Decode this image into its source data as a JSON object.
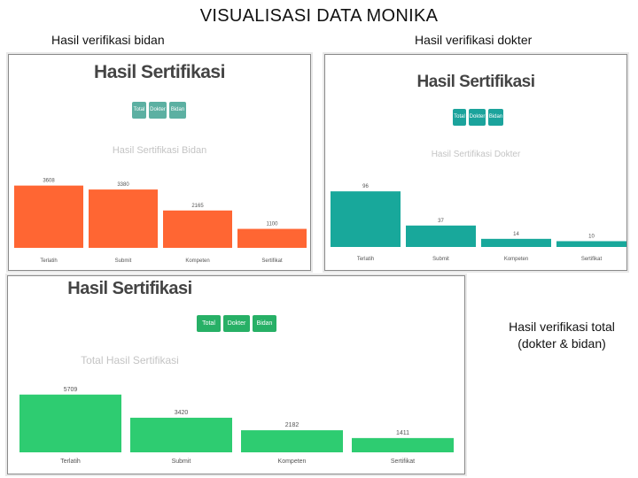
{
  "slide": {
    "title": "VISUALISASI DATA MONIKA",
    "caption_bidan": "Hasil verifikasi bidan",
    "caption_dokter": "Hasil verifikasi dokter",
    "caption_total_line1": "Hasil verifikasi total",
    "caption_total_line2": "(dokter & bidan)"
  },
  "panels": [
    {
      "heading": "Hasil Sertifikasi",
      "buttons": [
        "Total",
        "Dokter",
        "Bidan"
      ],
      "accent": "#5cb0a2",
      "bar_color": "#ff6633"
    },
    {
      "heading": "Hasil Sertifikasi",
      "buttons": [
        "Total",
        "Dokter",
        "Bidan"
      ],
      "accent": "#1ba39c",
      "bar_color": "#18a89b"
    },
    {
      "heading": "Hasil Sertifikasi",
      "buttons": [
        "Total",
        "Dokter",
        "Bidan"
      ],
      "accent": "#27b066",
      "bar_color": "#2ecc71"
    }
  ],
  "chart_data": [
    {
      "type": "bar",
      "title": "Hasil Sertifikasi Bidan",
      "categories": [
        "Terlatih",
        "Submit",
        "Kompeten",
        "Sertifikat"
      ],
      "values": [
        3608,
        3380,
        2165,
        1100
      ],
      "labels": [
        "3608",
        "3380",
        "2165",
        "1100"
      ],
      "ylim": [
        0,
        4000
      ]
    },
    {
      "type": "bar",
      "title": "Hasil Sertifikasi Dokter",
      "categories": [
        "Terlatih",
        "Submit",
        "Kompeten",
        "Sertifikat"
      ],
      "values": [
        96,
        37,
        14,
        10
      ],
      "labels": [
        "96",
        "37",
        "14",
        "10"
      ],
      "ylim": [
        0,
        110
      ]
    },
    {
      "type": "bar",
      "title": "Total Hasil Sertifikasi",
      "categories": [
        "Terlatih",
        "Submit",
        "Kompeten",
        "Sertifikat"
      ],
      "values": [
        5709,
        3420,
        2182,
        1411
      ],
      "labels": [
        "5709",
        "3420",
        "2182",
        "1411"
      ],
      "ylim": [
        0,
        6300
      ]
    }
  ]
}
